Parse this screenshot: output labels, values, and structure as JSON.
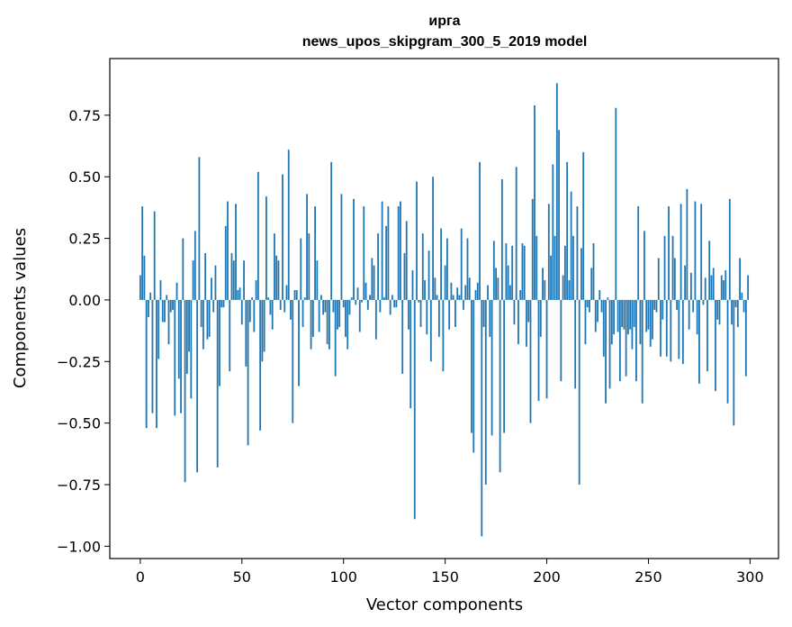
{
  "chart_data": {
    "type": "bar",
    "title": "ирга",
    "subtitle": "news_upos_skipgram_300_5_2019 model",
    "xlabel": "Vector components",
    "ylabel": "Components values",
    "xlim": [
      -15,
      314
    ],
    "ylim": [
      -1.05,
      0.98
    ],
    "xticks": [
      0,
      50,
      100,
      150,
      200,
      250,
      300
    ],
    "yticks": [
      -1.0,
      -0.75,
      -0.5,
      -0.25,
      0.0,
      0.25,
      0.5,
      0.75
    ],
    "ytick_labels": [
      "−1.00",
      "−0.75",
      "−0.50",
      "−0.25",
      "0.00",
      "0.25",
      "0.50",
      "0.75"
    ],
    "bar_color": "#1f77b4",
    "x": [
      0,
      1,
      2,
      3,
      4,
      5,
      6,
      7,
      8,
      9,
      10,
      11,
      12,
      13,
      14,
      15,
      16,
      17,
      18,
      19,
      20,
      21,
      22,
      23,
      24,
      25,
      26,
      27,
      28,
      29,
      30,
      31,
      32,
      33,
      34,
      35,
      36,
      37,
      38,
      39,
      40,
      41,
      42,
      43,
      44,
      45,
      46,
      47,
      48,
      49,
      50,
      51,
      52,
      53,
      54,
      55,
      56,
      57,
      58,
      59,
      60,
      61,
      62,
      63,
      64,
      65,
      66,
      67,
      68,
      69,
      70,
      71,
      72,
      73,
      74,
      75,
      76,
      77,
      78,
      79,
      80,
      81,
      82,
      83,
      84,
      85,
      86,
      87,
      88,
      89,
      90,
      91,
      92,
      93,
      94,
      95,
      96,
      97,
      98,
      99,
      100,
      101,
      102,
      103,
      104,
      105,
      106,
      107,
      108,
      109,
      110,
      111,
      112,
      113,
      114,
      115,
      116,
      117,
      118,
      119,
      120,
      121,
      122,
      123,
      124,
      125,
      126,
      127,
      128,
      129,
      130,
      131,
      132,
      133,
      134,
      135,
      136,
      137,
      138,
      139,
      140,
      141,
      142,
      143,
      144,
      145,
      146,
      147,
      148,
      149,
      150,
      151,
      152,
      153,
      154,
      155,
      156,
      157,
      158,
      159,
      160,
      161,
      162,
      163,
      164,
      165,
      166,
      167,
      168,
      169,
      170,
      171,
      172,
      173,
      174,
      175,
      176,
      177,
      178,
      179,
      180,
      181,
      182,
      183,
      184,
      185,
      186,
      187,
      188,
      189,
      190,
      191,
      192,
      193,
      194,
      195,
      196,
      197,
      198,
      199,
      200,
      201,
      202,
      203,
      204,
      205,
      206,
      207,
      208,
      209,
      210,
      211,
      212,
      213,
      214,
      215,
      216,
      217,
      218,
      219,
      220,
      221,
      222,
      223,
      224,
      225,
      226,
      227,
      228,
      229,
      230,
      231,
      232,
      233,
      234,
      235,
      236,
      237,
      238,
      239,
      240,
      241,
      242,
      243,
      244,
      245,
      246,
      247,
      248,
      249,
      250,
      251,
      252,
      253,
      254,
      255,
      256,
      257,
      258,
      259,
      260,
      261,
      262,
      263,
      264,
      265,
      266,
      267,
      268,
      269,
      270,
      271,
      272,
      273,
      274,
      275,
      276,
      277,
      278,
      279,
      280,
      281,
      282,
      283,
      284,
      285,
      286,
      287,
      288,
      289,
      290,
      291,
      292,
      293,
      294,
      295,
      296,
      297,
      298,
      299
    ],
    "values": [
      0.1,
      0.38,
      0.18,
      -0.52,
      -0.07,
      0.03,
      -0.46,
      0.36,
      -0.52,
      -0.24,
      0.08,
      -0.09,
      -0.09,
      0.02,
      -0.18,
      -0.05,
      -0.04,
      -0.47,
      0.07,
      -0.32,
      -0.46,
      0.25,
      -0.74,
      -0.3,
      -0.21,
      -0.4,
      0.16,
      0.28,
      -0.7,
      0.58,
      -0.11,
      -0.2,
      0.19,
      -0.16,
      -0.15,
      0.09,
      -0.05,
      0.14,
      -0.68,
      -0.35,
      -0.03,
      -0.03,
      0.3,
      0.4,
      -0.29,
      0.19,
      0.16,
      0.39,
      0.04,
      0.05,
      -0.1,
      0.16,
      -0.27,
      -0.59,
      -0.09,
      0.01,
      -0.13,
      0.08,
      0.52,
      -0.53,
      -0.25,
      -0.21,
      0.42,
      0.01,
      -0.06,
      -0.12,
      0.27,
      0.18,
      0.16,
      -0.04,
      0.51,
      -0.05,
      0.06,
      0.61,
      -0.08,
      -0.5,
      0.04,
      0.04,
      -0.35,
      0.25,
      -0.11,
      0.01,
      0.43,
      0.27,
      -0.2,
      -0.15,
      0.38,
      0.16,
      -0.13,
      0.02,
      -0.06,
      -0.05,
      -0.18,
      -0.2,
      0.56,
      -0.05,
      -0.31,
      -0.12,
      -0.11,
      0.43,
      -0.03,
      -0.15,
      -0.2,
      -0.06,
      0.01,
      0.41,
      -0.02,
      0.05,
      -0.13,
      -0.01,
      0.38,
      0.07,
      -0.04,
      0.02,
      0.17,
      0.14,
      -0.16,
      0.27,
      -0.05,
      0.4,
      0.01,
      0.3,
      0.38,
      -0.06,
      0.02,
      -0.03,
      -0.03,
      0.38,
      0.4,
      -0.3,
      0.19,
      0.32,
      -0.12,
      -0.44,
      0.12,
      -0.89,
      0.48,
      -0.01,
      -0.11,
      0.27,
      0.08,
      -0.14,
      0.2,
      -0.25,
      0.5,
      0.09,
      0.02,
      -0.15,
      0.29,
      -0.29,
      0.14,
      0.25,
      -0.12,
      0.07,
      0.02,
      -0.11,
      0.05,
      0.02,
      0.29,
      -0.04,
      0.06,
      0.25,
      0.09,
      -0.54,
      -0.62,
      0.04,
      0.07,
      0.56,
      -0.96,
      -0.11,
      -0.75,
      0.06,
      -0.15,
      -0.55,
      0.24,
      0.13,
      0.09,
      -0.7,
      0.49,
      -0.54,
      0.23,
      0.14,
      0.06,
      0.22,
      -0.1,
      0.54,
      -0.18,
      0.04,
      0.23,
      0.22,
      -0.19,
      -0.09,
      -0.5,
      0.41,
      0.79,
      0.26,
      -0.41,
      -0.15,
      0.13,
      0.08,
      -0.4,
      0.39,
      0.18,
      0.55,
      0.26,
      0.88,
      0.69,
      -0.33,
      0.1,
      0.22,
      0.56,
      0.08,
      0.44,
      0.26,
      -0.36,
      0.38,
      -0.75,
      0.21,
      0.6,
      -0.18,
      -0.03,
      -0.05,
      0.13,
      0.23,
      -0.13,
      -0.09,
      0.04,
      -0.05,
      -0.23,
      -0.42,
      0.01,
      -0.36,
      -0.18,
      -0.14,
      0.78,
      -0.13,
      -0.33,
      -0.11,
      -0.12,
      -0.31,
      -0.14,
      -0.12,
      -0.2,
      -0.11,
      -0.33,
      0.38,
      -0.18,
      -0.42,
      0.28,
      -0.13,
      -0.12,
      -0.19,
      -0.16,
      -0.04,
      -0.05,
      0.17,
      -0.23,
      -0.08,
      0.26,
      -0.23,
      0.38,
      -0.25,
      0.26,
      0.17,
      -0.04,
      -0.24,
      0.39,
      -0.26,
      0.14,
      0.45,
      -0.12,
      0.11,
      -0.05,
      0.4,
      -0.14,
      -0.34,
      0.39,
      -0.02,
      0.09,
      -0.29,
      0.24,
      0.1,
      0.13,
      -0.37,
      -0.08,
      -0.1,
      0.1,
      0.08,
      0.12,
      -0.42,
      0.41,
      -0.1,
      -0.51,
      -0.03,
      -0.11,
      0.17,
      0.03,
      -0.05,
      -0.31,
      0.1
    ]
  }
}
